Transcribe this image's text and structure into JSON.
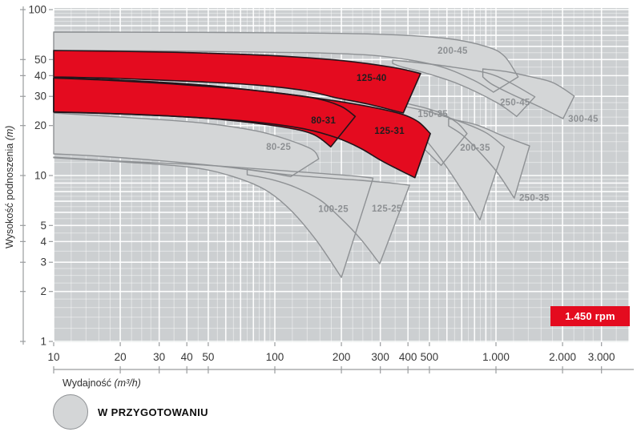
{
  "chart_data": {
    "type": "area",
    "kind": "pump-selection-map",
    "scale": "log-log",
    "xlabel": {
      "text": "Wydajność",
      "unit": " (m³/h)"
    },
    "ylabel": {
      "text": "Wysokość podnoszenia",
      "unit": " (m)"
    },
    "xlim": [
      10,
      4000
    ],
    "ylim": [
      1,
      100
    ],
    "grid": true,
    "x_ticks": [
      {
        "v": 10,
        "label": "10"
      },
      {
        "v": 20,
        "label": "20"
      },
      {
        "v": 30,
        "label": "30"
      },
      {
        "v": 40,
        "label": "40"
      },
      {
        "v": 50,
        "label": "50"
      },
      {
        "v": 100,
        "label": "100"
      },
      {
        "v": 200,
        "label": "200"
      },
      {
        "v": 300,
        "label": "300"
      },
      {
        "v": 400,
        "label": "400"
      },
      {
        "v": 500,
        "label": "500"
      },
      {
        "v": 1000,
        "label": "1.000"
      },
      {
        "v": 2000,
        "label": "2.000"
      },
      {
        "v": 3000,
        "label": "3.000"
      }
    ],
    "y_ticks": [
      {
        "v": 100,
        "label": "100"
      },
      {
        "v": 50,
        "label": "50"
      },
      {
        "v": 40,
        "label": "40"
      },
      {
        "v": 30,
        "label": "30"
      },
      {
        "v": 20,
        "label": "20"
      },
      {
        "v": 10,
        "label": "10"
      },
      {
        "v": 5,
        "label": "5"
      },
      {
        "v": 4,
        "label": "4"
      },
      {
        "v": 3,
        "label": "3"
      },
      {
        "v": 2,
        "label": "2"
      },
      {
        "v": 1,
        "label": "1"
      }
    ],
    "rpm_badge": "1.450 rpm",
    "legend": {
      "label": "W PRZYGOTOWANIU",
      "swatch": "gray-circle"
    },
    "colors": {
      "plot_bg": "#cccfd1",
      "grid": "#ffffff",
      "region_fill": "#d4d6d7",
      "region_stroke": "#8e9194",
      "red_fill": "#e40b1f",
      "red_stroke": "#23141a",
      "label_gray": "#8d9093",
      "label_dark": "#1e1e1e",
      "axis_line": "#9a9c9e",
      "axis_text": "#383838"
    },
    "regions": [
      {
        "name": "200-45",
        "status": "in_preparation",
        "label_q": 637,
        "label_h": 56.7,
        "top": [
          [
            10,
            73.2
          ],
          [
            30,
            73
          ],
          [
            100,
            72.5
          ],
          [
            300,
            71
          ],
          [
            600,
            67
          ],
          [
            900,
            60
          ],
          [
            1090,
            52.5
          ],
          [
            1260,
            39.3
          ]
        ],
        "tip": [
          974,
          31.8
        ],
        "bottom": [
          [
            790,
            37.6
          ],
          [
            540,
            46
          ],
          [
            300,
            52.5
          ],
          [
            160,
            54.8
          ],
          [
            100,
            55.3
          ],
          [
            30,
            56.3
          ],
          [
            10,
            56.7
          ]
        ]
      },
      {
        "name": "250-45",
        "status": "in_preparation",
        "label_q": 1220,
        "label_h": 27.7,
        "top": [
          [
            341,
            49.6
          ],
          [
            437,
            48
          ],
          [
            611,
            45.4
          ],
          [
            904,
            41.6
          ],
          [
            1140,
            36.7
          ],
          [
            1500,
            29.8
          ]
        ],
        "tip": [
          1240,
          22.7
        ],
        "bottom": [
          [
            1010,
            27.5
          ],
          [
            681,
            35.5
          ],
          [
            476,
            41.6
          ],
          [
            371,
            45.4
          ],
          [
            341,
            47.4
          ]
        ]
      },
      {
        "name": "300-45",
        "status": "in_preparation",
        "label_q": 2480,
        "label_h": 22,
        "top": [
          [
            872,
            43.9
          ],
          [
            1090,
            42.5
          ],
          [
            1400,
            39.7
          ],
          [
            1810,
            36.3
          ],
          [
            2260,
            30.1
          ]
        ],
        "tip": [
          2010,
          22
        ],
        "bottom": [
          [
            1570,
            26
          ],
          [
            1190,
            30.7
          ],
          [
            959,
            35.5
          ],
          [
            872,
            39.3
          ]
        ]
      },
      {
        "name": "150-35",
        "status": "in_preparation",
        "label_q": 518,
        "label_h": 23.5,
        "top": [
          [
            207,
            30.7
          ],
          [
            288,
            29.4
          ],
          [
            403,
            27
          ],
          [
            540,
            24.3
          ],
          [
            664,
            20.9
          ],
          [
            740,
            17.9
          ]
        ],
        "tip": [
          565,
          11.5
        ],
        "bottom": [
          [
            470,
            14.6
          ],
          [
            395,
            18.2
          ],
          [
            330,
            21.5
          ],
          [
            260,
            24.9
          ],
          [
            207,
            27.5
          ]
        ]
      },
      {
        "name": "200-35",
        "status": "in_preparation",
        "label_q": 805,
        "label_h": 14.8,
        "top": [
          [
            341,
            26.9
          ],
          [
            476,
            24.6
          ],
          [
            664,
            21.5
          ],
          [
            896,
            18.2
          ],
          [
            1090,
            14.9
          ]
        ],
        "tip": [
          846,
          5.4
        ],
        "bottom": [
          [
            694,
            8.34
          ],
          [
            563,
            12.6
          ],
          [
            458,
            17.6
          ],
          [
            389,
            21.3
          ],
          [
            341,
            24.3
          ]
        ]
      },
      {
        "name": "250-35",
        "status": "in_preparation",
        "label_q": 1490,
        "label_h": 7.35,
        "top": [
          [
            611,
            22
          ],
          [
            817,
            20.2
          ],
          [
            1090,
            17.2
          ],
          [
            1420,
            15.1
          ]
        ],
        "tip": [
          1210,
          7.3
        ],
        "bottom": [
          [
            1010,
            10.5
          ],
          [
            832,
            14.1
          ],
          [
            703,
            17.6
          ],
          [
            611,
            19.9
          ]
        ]
      },
      {
        "name": "80-25",
        "status": "in_preparation",
        "label_q": 104,
        "label_h": 14.9,
        "top": [
          [
            10,
            23.8
          ],
          [
            20,
            22.5
          ],
          [
            46,
            20.8
          ],
          [
            82,
            18.6
          ],
          [
            115,
            16.4
          ],
          [
            148,
            14.3
          ],
          [
            158,
            12.6
          ]
        ],
        "tip": [
          118,
          9.85
        ],
        "bottom": [
          [
            90,
            10.5
          ],
          [
            59,
            11.3
          ],
          [
            30,
            12.3
          ],
          [
            15.6,
            13.1
          ],
          [
            10,
            13.5
          ]
        ]
      },
      {
        "name": "100-25",
        "status": "in_preparation",
        "label_q": 184,
        "label_h": 6.3,
        "top": [
          [
            10,
            12.9
          ],
          [
            20,
            12.2
          ],
          [
            46,
            11.6
          ],
          [
            90,
            10.9
          ],
          [
            160,
            10.3
          ],
          [
            225,
            9.96
          ],
          [
            278,
            9.65
          ]
        ],
        "tip": [
          200,
          2.43
        ],
        "bottom": [
          [
            154,
            4.07
          ],
          [
            117,
            6.25
          ],
          [
            90,
            8.23
          ],
          [
            64,
            9.9
          ],
          [
            42,
            11.2
          ],
          [
            20,
            12.1
          ],
          [
            10,
            12.8
          ]
        ]
      },
      {
        "name": "125-25",
        "status": "in_preparation",
        "label_q": 321,
        "label_h": 6.35,
        "top": [
          [
            75,
            10.9
          ],
          [
            115,
            10.1
          ],
          [
            176,
            9.65
          ],
          [
            244,
            9.35
          ],
          [
            327,
            9.04
          ],
          [
            407,
            8.74
          ]
        ],
        "tip": [
          298,
          2.94
        ],
        "bottom": [
          [
            244,
            4.15
          ],
          [
            198,
            5.55
          ],
          [
            161,
            7.08
          ],
          [
            125,
            8.45
          ],
          [
            97,
            9.45
          ],
          [
            75,
            10.1
          ]
        ]
      },
      {
        "name": "125-31",
        "status": "available",
        "label_q": 330,
        "label_h": 18.6,
        "top": [
          [
            10,
            38.7
          ],
          [
            20,
            37.2
          ],
          [
            46,
            34.7
          ],
          [
            97,
            31.8
          ],
          [
            190,
            28.1
          ],
          [
            288,
            25.5
          ],
          [
            381,
            23.3
          ],
          [
            447,
            21
          ],
          [
            505,
            17.9
          ]
        ],
        "tip": [
          430,
          9.7
        ],
        "bottom": [
          [
            371,
            10.7
          ],
          [
            306,
            12.2
          ],
          [
            244,
            14.6
          ],
          [
            190,
            16.9
          ],
          [
            136,
            19.1
          ],
          [
            82,
            21
          ],
          [
            46,
            22.3
          ],
          [
            20,
            23.5
          ],
          [
            10,
            24.1
          ]
        ]
      },
      {
        "name": "80-31",
        "status": "available",
        "label_q": 166,
        "label_h": 21.5,
        "top": [
          [
            10,
            38.8
          ],
          [
            20,
            37.6
          ],
          [
            46,
            35.2
          ],
          [
            82,
            32.5
          ],
          [
            148,
            29.4
          ],
          [
            198,
            26.2
          ],
          [
            231,
            22.7
          ]
        ],
        "tip": [
          179,
          14.9
        ],
        "bottom": [
          [
            148,
            17.8
          ],
          [
            106,
            19.7
          ],
          [
            59,
            21.7
          ],
          [
            30,
            23
          ],
          [
            15.6,
            23.8
          ],
          [
            10,
            24.2
          ]
        ]
      },
      {
        "name": "125-40",
        "status": "available",
        "label_q": 274,
        "label_h": 38.8,
        "top": [
          [
            10,
            56.7
          ],
          [
            20,
            56.1
          ],
          [
            46,
            54.8
          ],
          [
            106,
            52.5
          ],
          [
            207,
            49.1
          ],
          [
            341,
            44.9
          ],
          [
            456,
            41.2
          ]
        ],
        "tip": [
          381,
          23.8
        ],
        "bottom": [
          [
            265,
            26.9
          ],
          [
            190,
            29.4
          ],
          [
            136,
            32.5
          ],
          [
            82,
            35.1
          ],
          [
            46,
            36.7
          ],
          [
            20,
            38.4
          ],
          [
            10,
            39.3
          ]
        ]
      }
    ]
  }
}
